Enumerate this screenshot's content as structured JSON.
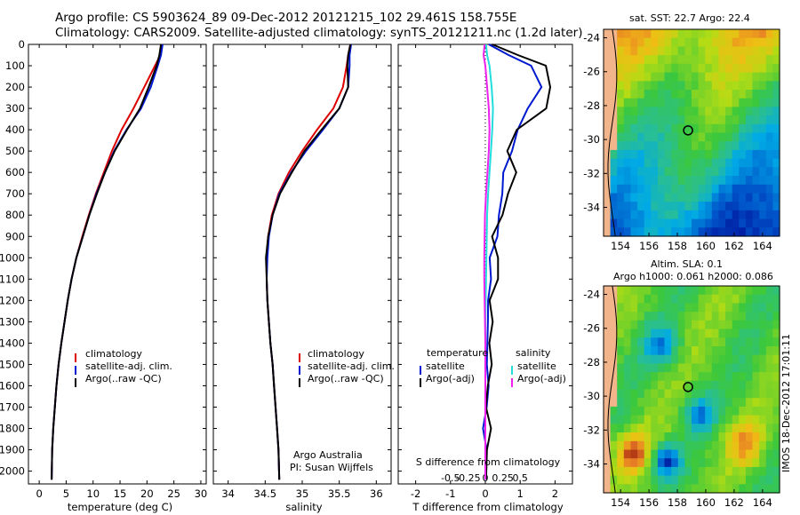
{
  "header": {
    "line1": "Argo profile: CS 5903624_89 09-Dec-2012 20121215_102 29.461S 158.755E",
    "line2": "Climatology: CARS2009. Satellite-adjusted climatology: synTS_20121211.nc (1.2d later)"
  },
  "map_labels": {
    "sst": "sat. SST: 22.7 Argo: 22.4",
    "sla": "Altim. SLA: 0.1",
    "heights": "Argo h1000: 0.061 h2000: 0.086"
  },
  "stamp": "IMOS 18-Dec-2012 17:01:11",
  "notes": {
    "line1": "Argo Australia",
    "line2": "PI: Susan Wijffels"
  },
  "colors": {
    "climatology": "#dd0000",
    "satellite": "#0018d0",
    "argo": "#000000",
    "satellite_s": "#22dddd",
    "argo_s": "#ee22ee"
  },
  "chart_data": [
    {
      "type": "line",
      "xlabel": "temperature (deg C)",
      "xlim": [
        -2,
        31
      ],
      "xticks": [
        0,
        5,
        10,
        15,
        20,
        25,
        30
      ],
      "ylim": [
        2060,
        0
      ],
      "yticks": [
        0,
        100,
        200,
        300,
        400,
        500,
        600,
        700,
        800,
        900,
        1000,
        1100,
        1200,
        1300,
        1400,
        1500,
        1600,
        1700,
        1800,
        1900,
        2000
      ],
      "y_reversed": true,
      "legend": [
        "climatology",
        "satellite-adj. clim.",
        "Argo(..raw -QC)"
      ],
      "legend_placement": "lower-middle",
      "series": [
        {
          "name": "climatology",
          "color_key": "climatology",
          "x": [
            22.8,
            22.5,
            21.5,
            19.5,
            17.5,
            15.3,
            13.5,
            12.0,
            10.5,
            9.2,
            8.0,
            6.9,
            6.0,
            5.3,
            4.7,
            4.1,
            3.6,
            3.2,
            2.9,
            2.6,
            2.4,
            2.3
          ],
          "y": [
            0,
            50,
            100,
            200,
            300,
            400,
            500,
            600,
            700,
            800,
            900,
            1000,
            1100,
            1200,
            1300,
            1400,
            1500,
            1600,
            1700,
            1800,
            1900,
            2040
          ]
        },
        {
          "name": "satellite-adj. clim.",
          "color_key": "satellite",
          "x": [
            22.9,
            22.6,
            22.0,
            20.7,
            18.9,
            16.2,
            13.9,
            12.2,
            10.6,
            9.3,
            8.1,
            6.9,
            6.0,
            5.3,
            4.7,
            4.1,
            3.6,
            3.2,
            2.9,
            2.6,
            2.4,
            2.3
          ],
          "y": [
            0,
            50,
            100,
            200,
            300,
            400,
            500,
            600,
            700,
            800,
            900,
            1000,
            1100,
            1200,
            1300,
            1400,
            1500,
            1600,
            1700,
            1800,
            1900,
            2040
          ]
        },
        {
          "name": "Argo(..raw -QC)",
          "color_key": "argo",
          "x": [
            22.6,
            22.3,
            21.8,
            20.3,
            18.7,
            16.3,
            14.0,
            12.2,
            10.7,
            9.3,
            8.1,
            6.9,
            6.0,
            5.3,
            4.7,
            4.1,
            3.6,
            3.2,
            2.9,
            2.6,
            2.4,
            2.3
          ],
          "y": [
            0,
            50,
            100,
            200,
            300,
            400,
            500,
            600,
            700,
            800,
            900,
            1000,
            1100,
            1200,
            1300,
            1400,
            1500,
            1600,
            1700,
            1800,
            1900,
            2040
          ]
        }
      ]
    },
    {
      "type": "line",
      "xlabel": "salinity",
      "xlim": [
        33.8,
        36.2
      ],
      "xticks": [
        34,
        34.5,
        35,
        35.5,
        36
      ],
      "ylim": [
        2060,
        0
      ],
      "y_reversed": true,
      "legend": [
        "climatology",
        "satellite-adj. clim.",
        "Argo(..raw -QC)"
      ],
      "legend_placement": "lower-right",
      "series": [
        {
          "name": "climatology",
          "color_key": "climatology",
          "x": [
            35.65,
            35.62,
            35.6,
            35.55,
            35.42,
            35.2,
            35.0,
            34.82,
            34.68,
            34.59,
            34.54,
            34.52,
            34.52,
            34.53,
            34.55,
            34.57,
            34.6,
            34.62,
            34.64,
            34.66,
            34.68,
            34.69
          ],
          "y": [
            0,
            50,
            100,
            200,
            300,
            400,
            500,
            600,
            700,
            800,
            900,
            1000,
            1100,
            1200,
            1300,
            1400,
            1500,
            1600,
            1700,
            1800,
            1900,
            2040
          ]
        },
        {
          "name": "satellite-adj. clim.",
          "color_key": "satellite",
          "x": [
            35.66,
            35.64,
            35.64,
            35.62,
            35.5,
            35.28,
            35.05,
            34.85,
            34.69,
            34.6,
            34.55,
            34.53,
            34.52,
            34.53,
            34.55,
            34.57,
            34.6,
            34.62,
            34.64,
            34.66,
            34.68,
            34.69
          ],
          "y": [
            0,
            50,
            100,
            200,
            300,
            400,
            500,
            600,
            700,
            800,
            900,
            1000,
            1100,
            1200,
            1300,
            1400,
            1500,
            1600,
            1700,
            1800,
            1900,
            2040
          ]
        },
        {
          "name": "Argo(..raw -QC)",
          "color_key": "argo",
          "x": [
            35.65,
            35.62,
            35.61,
            35.62,
            35.5,
            35.26,
            35.03,
            34.86,
            34.7,
            34.6,
            34.54,
            34.51,
            34.52,
            34.53,
            34.55,
            34.57,
            34.6,
            34.62,
            34.64,
            34.66,
            34.68,
            34.69
          ],
          "y": [
            0,
            50,
            100,
            200,
            300,
            400,
            500,
            600,
            700,
            800,
            900,
            1000,
            1100,
            1200,
            1300,
            1400,
            1500,
            1600,
            1700,
            1800,
            1900,
            2040
          ]
        }
      ]
    },
    {
      "type": "line",
      "xlabel": "T difference from climatology",
      "xlabel_top": "S difference from climatology",
      "xlim": [
        -2.5,
        2.5
      ],
      "xticks": [
        -2,
        -1,
        0,
        1,
        2
      ],
      "xticks_top": [
        -0.5,
        -0.25,
        0,
        0.25,
        0.5
      ],
      "ylim": [
        2060,
        0
      ],
      "y_reversed": true,
      "legend_headers": [
        "temperature",
        "salinity"
      ],
      "legend": [
        "satellite",
        "Argo(-adj)",
        "satellite",
        "Argo(-adj)"
      ],
      "legend_placement": "lower-middle",
      "series": [
        {
          "name": "satellite",
          "color_key": "satellite",
          "x": [
            0.1,
            0.6,
            1.2,
            1.6,
            1.3,
            1.0,
            0.75,
            0.6,
            0.5,
            0.4,
            0.32,
            0.25,
            0.2,
            0.15,
            0.12,
            0.1,
            0.08,
            0.07,
            0.05,
            0.04,
            0.03,
            0.02
          ],
          "y": [
            0,
            50,
            100,
            200,
            300,
            400,
            500,
            600,
            700,
            800,
            900,
            1000,
            1100,
            1200,
            1300,
            1400,
            1500,
            1600,
            1700,
            1800,
            1900,
            2040
          ]
        },
        {
          "name": "Argo(-adj)",
          "color_key": "argo",
          "x": [
            0.2,
            1.0,
            1.7,
            1.9,
            1.7,
            0.9,
            0.75,
            0.8,
            0.6,
            0.45,
            0.3,
            0.35,
            0.4,
            0.2,
            0.12,
            0.1,
            0.08,
            0.07,
            0.05,
            0.04,
            0.03,
            0.02
          ],
          "y": [
            0,
            50,
            100,
            200,
            300,
            400,
            500,
            600,
            700,
            800,
            900,
            1000,
            1100,
            1200,
            1300,
            1400,
            1500,
            1600,
            1700,
            1800,
            1900,
            2040
          ]
        },
        {
          "name": "satellite",
          "color_key": "satellite_s",
          "x": [
            0.02,
            0.05,
            0.12,
            0.18,
            0.22,
            0.2,
            0.16,
            0.12,
            0.08,
            0.05,
            0.04,
            0.03,
            0.02,
            0.01,
            0.0,
            0.0,
            0.0,
            0.0,
            0.0,
            0.0,
            0.0,
            0.0
          ],
          "y": [
            0,
            50,
            100,
            200,
            300,
            400,
            500,
            600,
            700,
            800,
            900,
            1000,
            1100,
            1200,
            1300,
            1400,
            1500,
            1600,
            1700,
            1800,
            1900,
            2040
          ]
        },
        {
          "name": "Argo(-adj)",
          "color_key": "argo_s",
          "x": [
            -0.02,
            -0.05,
            0.0,
            0.05,
            0.1,
            0.12,
            0.1,
            0.06,
            0.02,
            -0.01,
            -0.02,
            -0.03,
            -0.03,
            -0.02,
            -0.01,
            0.0,
            0.0,
            0.0,
            0.0,
            0.0,
            0.0,
            0.0
          ],
          "y": [
            0,
            50,
            100,
            200,
            300,
            400,
            500,
            600,
            700,
            800,
            900,
            1000,
            1100,
            1200,
            1300,
            1400,
            1500,
            1600,
            1700,
            1800,
            1900,
            2040
          ]
        }
      ]
    },
    {
      "type": "heatmap",
      "title": "sat. SST: 22.7 Argo: 22.4",
      "xticks": [
        154,
        156,
        158,
        160,
        162,
        164
      ],
      "yticks": [
        -24,
        -26,
        -28,
        -30,
        -32,
        -34
      ],
      "xlim": [
        152.8,
        165.2
      ],
      "ylim": [
        -35.7,
        -23.5
      ],
      "marker": {
        "lon": 158.755,
        "lat": -29.461
      }
    },
    {
      "type": "heatmap",
      "title": "Altim. SLA: 0.1",
      "xticks": [
        154,
        156,
        158,
        160,
        162,
        164
      ],
      "yticks": [
        -24,
        -26,
        -28,
        -30,
        -32,
        -34
      ],
      "xlim": [
        152.8,
        165.2
      ],
      "ylim": [
        -35.7,
        -23.5
      ],
      "marker": {
        "lon": 158.755,
        "lat": -29.461
      }
    }
  ]
}
